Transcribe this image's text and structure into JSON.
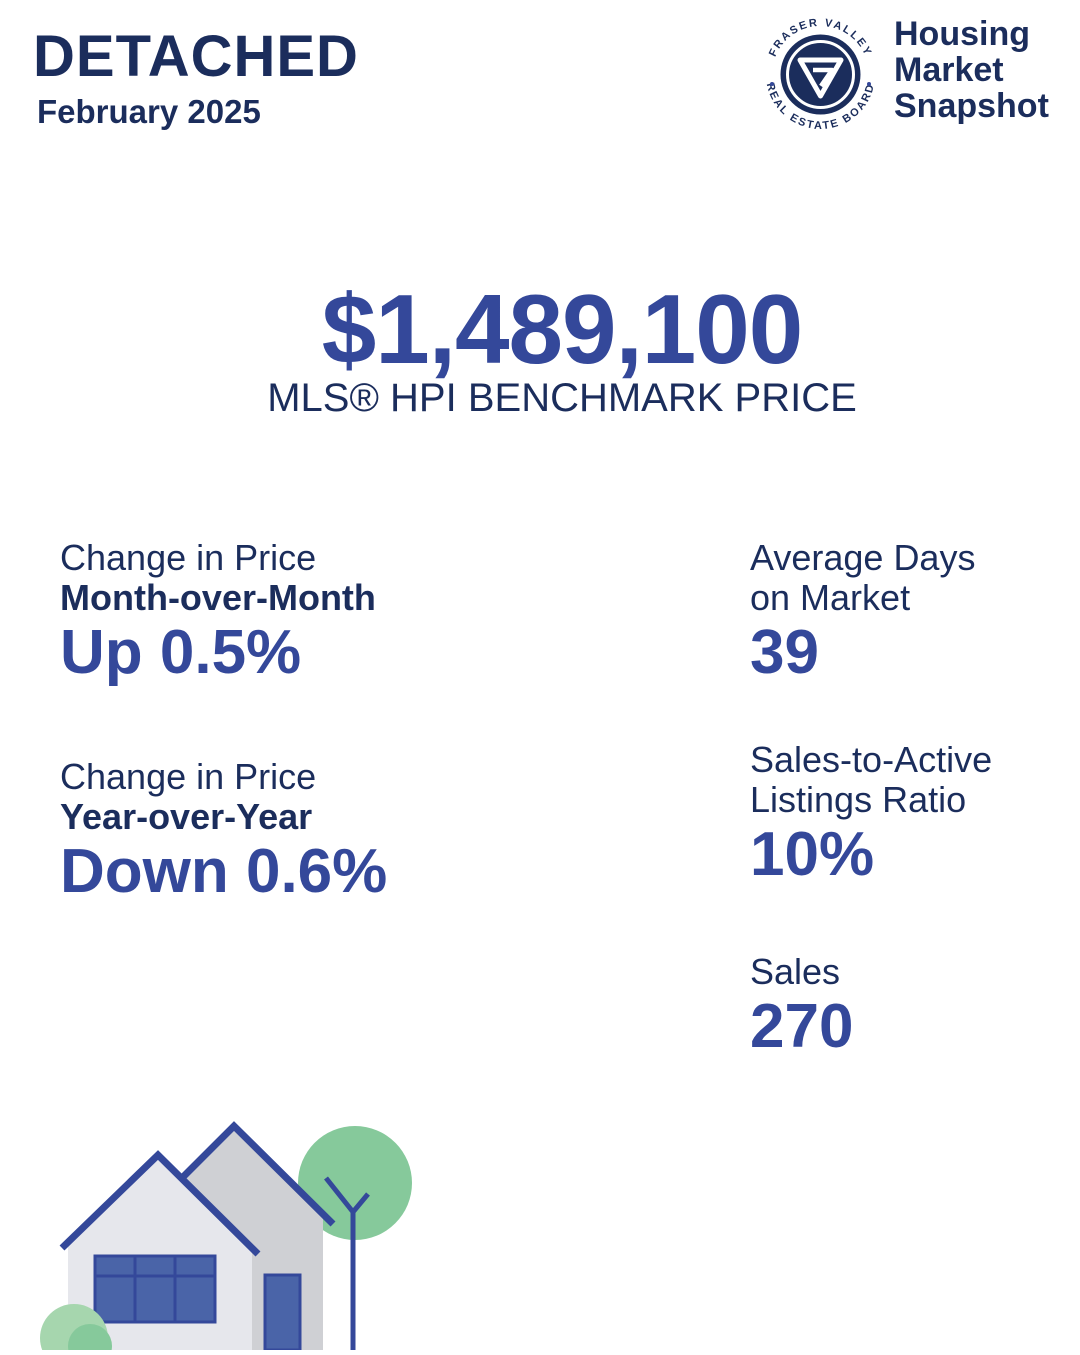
{
  "header": {
    "category": "DETACHED",
    "period": "February 2025",
    "logo": {
      "icon": "fraser-valley-real-estate-board-logo",
      "ring_text": "FRASER VALLEY · REAL ESTATE BOARD",
      "colors": {
        "navy": "#1b2d5c",
        "ring": "#34489a"
      }
    },
    "snapshot_lines": [
      "Housing",
      "Market",
      "Snapshot"
    ]
  },
  "benchmark": {
    "price": "$1,489,100",
    "label": "MLS® HPI BENCHMARK PRICE"
  },
  "stats_left": {
    "month_over_month": {
      "title": "Change in Price",
      "subtitle": "Month-over-Month",
      "value": "Up 0.5%"
    },
    "year_over_year": {
      "title": "Change in Price",
      "subtitle": "Year-over-Year",
      "value": "Down 0.6%"
    }
  },
  "stats_right": {
    "days_on_market": {
      "title_line1": "Average Days",
      "title_line2": "on Market",
      "value": "39"
    },
    "sales_to_active": {
      "title_line1": "Sales-to-Active",
      "title_line2": "Listings Ratio",
      "value": "10%"
    },
    "sales": {
      "title": "Sales",
      "value": "270"
    }
  },
  "illustration": {
    "icon": "houses-and-trees-illustration",
    "colors": {
      "navy": "#34489a",
      "house_light": "#e6e7ec",
      "house_gray": "#cfd0d4",
      "window": "#4a64a8",
      "tree_green": "#86c99b",
      "bush_green": "#a6d6ae"
    }
  }
}
